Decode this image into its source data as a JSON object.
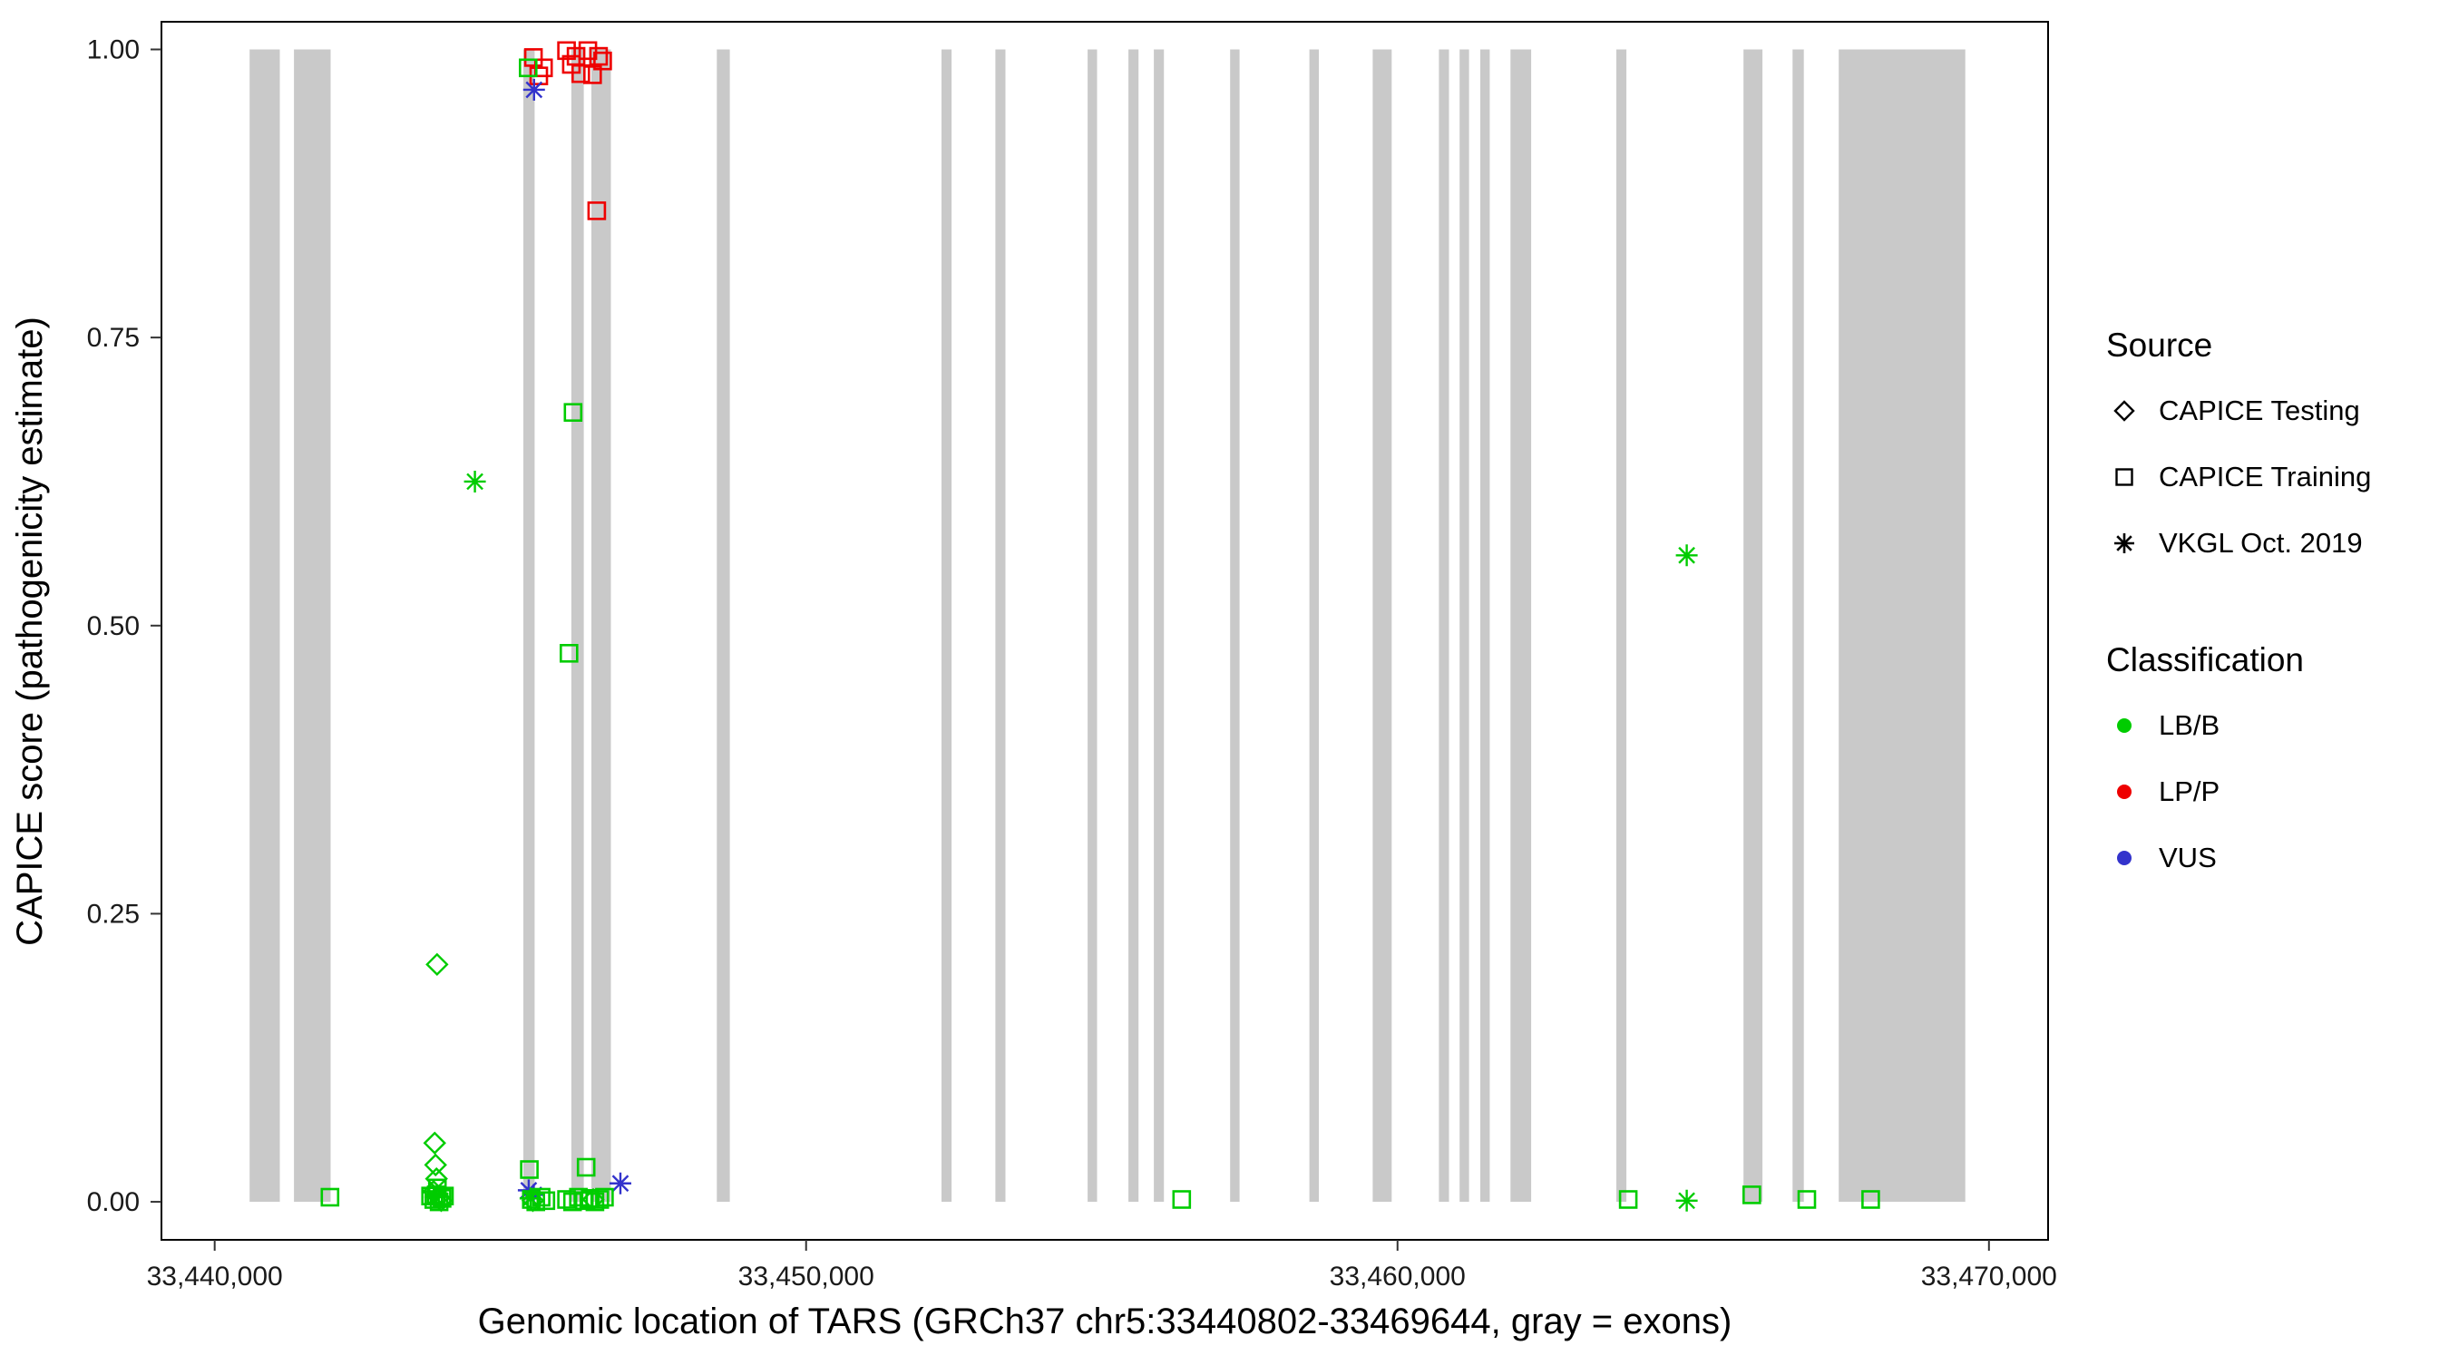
{
  "chart_data": {
    "type": "scatter",
    "title": "",
    "xlabel": "Genomic location of TARS (GRCh37 chr5:33440802-33469644, gray = exons)",
    "ylabel": "CAPICE score (pathogenicity estimate)",
    "x_domain": [
      33439100,
      33471000
    ],
    "y_domain": [
      -0.033,
      1.024
    ],
    "x_ticks": [
      {
        "value": 33440000,
        "label": "33,440,000"
      },
      {
        "value": 33450000,
        "label": "33,450,000"
      },
      {
        "value": 33460000,
        "label": "33,460,000"
      },
      {
        "value": 33470000,
        "label": "33,470,000"
      }
    ],
    "y_ticks": [
      {
        "value": 0.0,
        "label": "0.00"
      },
      {
        "value": 0.25,
        "label": "0.25"
      },
      {
        "value": 0.5,
        "label": "0.50"
      },
      {
        "value": 0.75,
        "label": "0.75"
      },
      {
        "value": 1.0,
        "label": "1.00"
      }
    ],
    "exon_color": "#c9c9c9",
    "exons": [
      [
        33440590,
        33441100
      ],
      [
        33441340,
        33441960
      ],
      [
        33445220,
        33445410
      ],
      [
        33446030,
        33446240
      ],
      [
        33446370,
        33446700
      ],
      [
        33448490,
        33448710
      ],
      [
        33452290,
        33452460
      ],
      [
        33453200,
        33453370
      ],
      [
        33454760,
        33454920
      ],
      [
        33455450,
        33455620
      ],
      [
        33455880,
        33456050
      ],
      [
        33457170,
        33457330
      ],
      [
        33458510,
        33458670
      ],
      [
        33459580,
        33459900
      ],
      [
        33460700,
        33460870
      ],
      [
        33461050,
        33461210
      ],
      [
        33461400,
        33461560
      ],
      [
        33461910,
        33462260
      ],
      [
        33463700,
        33463870
      ],
      [
        33465850,
        33466170
      ],
      [
        33466680,
        33466870
      ],
      [
        33467460,
        33469600
      ]
    ],
    "classification_colors": {
      "LB/B": "#00CC00",
      "LP/P": "#EE0000",
      "VUS": "#3333CC"
    },
    "source_shapes": {
      "CAPICE Testing": "diamond",
      "CAPICE Training": "square",
      "VKGL Oct. 2019": "asterisk"
    },
    "point_format": [
      "source",
      "classification",
      "genomic_position",
      "capice_score"
    ],
    "points": [
      [
        "CAPICE Training",
        "LP/P",
        33445390,
        0.993
      ],
      [
        "CAPICE Training",
        "LP/P",
        33445560,
        0.984
      ],
      [
        "CAPICE Training",
        "LP/P",
        33445480,
        0.977
      ],
      [
        "CAPICE Training",
        "LP/P",
        33445950,
        0.999
      ],
      [
        "CAPICE Training",
        "LP/P",
        33446030,
        0.987
      ],
      [
        "CAPICE Training",
        "LP/P",
        33446110,
        0.994
      ],
      [
        "CAPICE Training",
        "LP/P",
        33446190,
        0.979
      ],
      [
        "CAPICE Training",
        "LP/P",
        33446310,
        0.999
      ],
      [
        "CAPICE Training",
        "LP/P",
        33446390,
        0.978
      ],
      [
        "CAPICE Training",
        "LP/P",
        33446490,
        0.994
      ],
      [
        "CAPICE Training",
        "LP/P",
        33446560,
        0.99
      ],
      [
        "CAPICE Training",
        "LP/P",
        33446460,
        0.86
      ],
      [
        "CAPICE Training",
        "LB/B",
        33445300,
        0.984
      ],
      [
        "VKGL Oct. 2019",
        "VUS",
        33445400,
        0.965
      ],
      [
        "CAPICE Training",
        "LB/B",
        33446060,
        0.685
      ],
      [
        "CAPICE Training",
        "LB/B",
        33445990,
        0.476
      ],
      [
        "VKGL Oct. 2019",
        "LB/B",
        33444400,
        0.625
      ],
      [
        "VKGL Oct. 2019",
        "LB/B",
        33464890,
        0.561
      ],
      [
        "CAPICE Testing",
        "LB/B",
        33443760,
        0.206
      ],
      [
        "CAPICE Testing",
        "LB/B",
        33443720,
        0.051
      ],
      [
        "CAPICE Testing",
        "LB/B",
        33443735,
        0.032
      ],
      [
        "CAPICE Testing",
        "LB/B",
        33443750,
        0.02
      ],
      [
        "CAPICE Testing",
        "LB/B",
        33443700,
        0.009
      ],
      [
        "CAPICE Testing",
        "LB/B",
        33443790,
        0.004
      ],
      [
        "CAPICE Testing",
        "LB/B",
        33443830,
        0.001
      ],
      [
        "CAPICE Training",
        "LB/B",
        33443650,
        0.005
      ],
      [
        "CAPICE Training",
        "LB/B",
        33443705,
        0.002
      ],
      [
        "CAPICE Training",
        "LB/B",
        33443745,
        0.006
      ],
      [
        "CAPICE Training",
        "LB/B",
        33443795,
        0.0
      ],
      [
        "CAPICE Training",
        "LB/B",
        33443845,
        0.003
      ],
      [
        "CAPICE Training",
        "LB/B",
        33443885,
        0.005
      ],
      [
        "CAPICE Training",
        "LB/B",
        33443765,
        0.012
      ],
      [
        "VKGL Oct. 2019",
        "LB/B",
        33443730,
        0.004
      ],
      [
        "CAPICE Training",
        "LB/B",
        33441950,
        0.004
      ],
      [
        "VKGL Oct. 2019",
        "VUS",
        33445310,
        0.01
      ],
      [
        "VKGL Oct. 2019",
        "VUS",
        33445395,
        0.006
      ],
      [
        "VKGL Oct. 2019",
        "VUS",
        33446860,
        0.016
      ],
      [
        "VKGL Oct. 2019",
        "LB/B",
        33445340,
        0.003
      ],
      [
        "CAPICE Training",
        "LB/B",
        33445320,
        0.028
      ],
      [
        "CAPICE Training",
        "LB/B",
        33445355,
        0.002
      ],
      [
        "CAPICE Training",
        "LB/B",
        33445430,
        0.0
      ],
      [
        "CAPICE Training",
        "LB/B",
        33445520,
        0.004
      ],
      [
        "CAPICE Training",
        "LB/B",
        33445600,
        0.001
      ],
      [
        "CAPICE Training",
        "LB/B",
        33446280,
        0.03
      ],
      [
        "CAPICE Training",
        "LB/B",
        33445950,
        0.002
      ],
      [
        "CAPICE Training",
        "LB/B",
        33446050,
        0.0
      ],
      [
        "CAPICE Training",
        "LB/B",
        33446150,
        0.004
      ],
      [
        "CAPICE Training",
        "LB/B",
        33446250,
        0.001
      ],
      [
        "CAPICE Training",
        "LB/B",
        33446350,
        0.003
      ],
      [
        "CAPICE Training",
        "LB/B",
        33446430,
        0.0
      ],
      [
        "CAPICE Training",
        "LB/B",
        33446510,
        0.002
      ],
      [
        "CAPICE Training",
        "LB/B",
        33446590,
        0.004
      ],
      [
        "CAPICE Testing",
        "LB/B",
        33445380,
        0.001
      ],
      [
        "CAPICE Testing",
        "LB/B",
        33446400,
        0.002
      ],
      [
        "CAPICE Training",
        "LB/B",
        33456350,
        0.002
      ],
      [
        "CAPICE Training",
        "LB/B",
        33463900,
        0.002
      ],
      [
        "VKGL Oct. 2019",
        "LB/B",
        33464890,
        0.001
      ],
      [
        "CAPICE Training",
        "LB/B",
        33465990,
        0.006
      ],
      [
        "CAPICE Training",
        "LB/B",
        33466920,
        0.002
      ],
      [
        "CAPICE Training",
        "LB/B",
        33468000,
        0.002
      ]
    ]
  },
  "legend": {
    "source": {
      "title": "Source",
      "items": [
        {
          "label": "CAPICE Testing",
          "shape": "diamond"
        },
        {
          "label": "CAPICE Training",
          "shape": "square"
        },
        {
          "label": "VKGL Oct. 2019",
          "shape": "asterisk"
        }
      ]
    },
    "classification": {
      "title": "Classification",
      "items": [
        {
          "label": "LB/B",
          "color": "#00CC00"
        },
        {
          "label": "LP/P",
          "color": "#EE0000"
        },
        {
          "label": "VUS",
          "color": "#3333CC"
        }
      ]
    }
  }
}
